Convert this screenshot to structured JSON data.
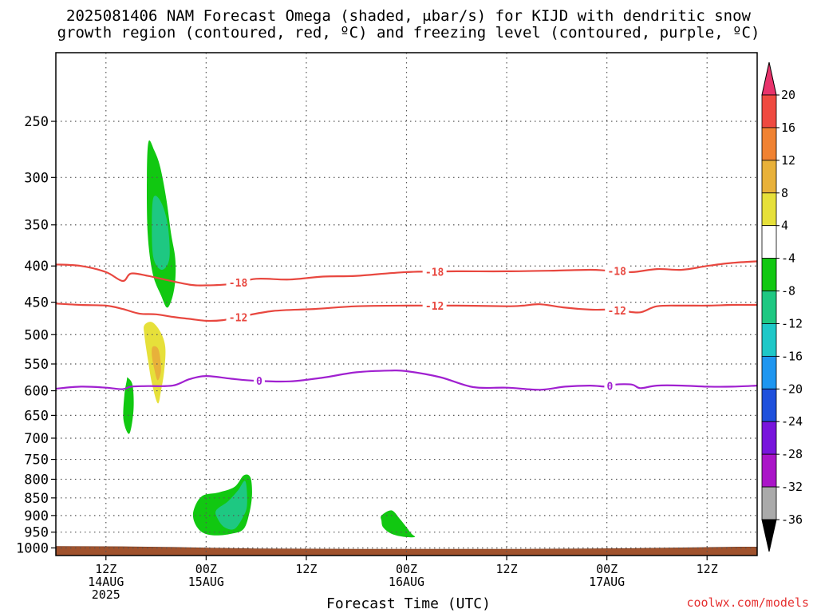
{
  "chart_data": {
    "type": "heatmap",
    "title_line1": "2025081406 NAM Forecast Omega (shaded, μbar/s) for KIJD with dendritic snow",
    "title_line2": "growth region (contoured, red, ºC) and freezing level (contoured, purple, ºC)",
    "xlabel": "Forecast Time (UTC)",
    "credit": "coolwx.com/models",
    "y_axis": {
      "log_scale": true,
      "inverted": true,
      "unit": "hPa",
      "range": [
        1025,
        200
      ],
      "ticks": [
        250,
        300,
        350,
        400,
        450,
        500,
        550,
        600,
        650,
        700,
        750,
        800,
        850,
        900,
        950,
        1000
      ]
    },
    "x_axis": {
      "range_hours": [
        -6,
        78
      ],
      "ticks": [
        {
          "hour": 0,
          "lines": [
            "12Z",
            "14AUG",
            "2025"
          ]
        },
        {
          "hour": 12,
          "lines": [
            "00Z",
            "15AUG"
          ]
        },
        {
          "hour": 24,
          "lines": [
            "12Z"
          ]
        },
        {
          "hour": 36,
          "lines": [
            "00Z",
            "16AUG"
          ]
        },
        {
          "hour": 48,
          "lines": [
            "12Z"
          ]
        },
        {
          "hour": 60,
          "lines": [
            "00Z",
            "17AUG"
          ]
        },
        {
          "hour": 72,
          "lines": [
            "12Z"
          ]
        }
      ]
    },
    "grid": true,
    "colorbar": {
      "position": "right",
      "levels": [
        -36,
        -32,
        -28,
        -24,
        -20,
        -16,
        -12,
        -8,
        -4,
        4,
        8,
        12,
        16,
        20
      ],
      "labels": [
        "20",
        "16",
        "12",
        "8",
        "4",
        "-4",
        "-8",
        "-12",
        "-16",
        "-20",
        "-24",
        "-28",
        "-32",
        "-36"
      ],
      "colors_top_to_bottom": [
        "#e8336b",
        "#ef4a40",
        "#f08232",
        "#e8b13a",
        "#e6e03a",
        "#ffffff",
        "#11c811",
        "#1ec882",
        "#1ec8c8",
        "#1e96f0",
        "#1e50dc",
        "#7814dc",
        "#aa14c8",
        "#aaaaaa",
        "#000000"
      ]
    },
    "contours": [
      {
        "color": "#e8473f",
        "labels": [
          "-18",
          "-18",
          "-18"
        ],
        "points": [
          [
            -6,
            398
          ],
          [
            -3,
            400
          ],
          [
            0,
            408
          ],
          [
            2,
            420
          ],
          [
            3,
            410
          ],
          [
            5,
            413
          ],
          [
            7,
            418
          ],
          [
            10,
            425
          ],
          [
            12,
            426
          ],
          [
            15,
            424
          ],
          [
            18,
            417
          ],
          [
            22,
            418
          ],
          [
            26,
            414
          ],
          [
            30,
            413
          ],
          [
            36,
            408
          ],
          [
            42,
            407
          ],
          [
            48,
            407
          ],
          [
            54,
            406
          ],
          [
            58,
            405
          ],
          [
            60,
            406
          ],
          [
            63,
            408
          ],
          [
            66,
            404
          ],
          [
            69,
            405
          ],
          [
            72,
            400
          ],
          [
            75,
            396
          ],
          [
            78,
            394
          ]
        ]
      },
      {
        "color": "#e8473f",
        "labels": [
          "-12",
          "-12",
          "-12"
        ],
        "points": [
          [
            -6,
            452
          ],
          [
            -3,
            454
          ],
          [
            0,
            455
          ],
          [
            2,
            460
          ],
          [
            4,
            467
          ],
          [
            6,
            468
          ],
          [
            8,
            472
          ],
          [
            10,
            475
          ],
          [
            12,
            478
          ],
          [
            14,
            477
          ],
          [
            16,
            472
          ],
          [
            20,
            463
          ],
          [
            25,
            460
          ],
          [
            30,
            456
          ],
          [
            36,
            455
          ],
          [
            42,
            455
          ],
          [
            48,
            456
          ],
          [
            50,
            455
          ],
          [
            52,
            453
          ],
          [
            55,
            458
          ],
          [
            58,
            461
          ],
          [
            60,
            461
          ],
          [
            62,
            463
          ],
          [
            64,
            465
          ],
          [
            66,
            456
          ],
          [
            69,
            455
          ],
          [
            72,
            455
          ],
          [
            75,
            454
          ],
          [
            78,
            454
          ]
        ]
      },
      {
        "color": "#a020d0",
        "labels": [
          "0",
          "0"
        ],
        "points": [
          [
            -6,
            596
          ],
          [
            -3,
            592
          ],
          [
            0,
            594
          ],
          [
            2,
            597
          ],
          [
            3,
            592
          ],
          [
            5,
            591
          ],
          [
            8,
            590
          ],
          [
            10,
            578
          ],
          [
            12,
            572
          ],
          [
            15,
            577
          ],
          [
            18,
            581
          ],
          [
            22,
            582
          ],
          [
            26,
            575
          ],
          [
            30,
            565
          ],
          [
            34,
            562
          ],
          [
            36,
            563
          ],
          [
            40,
            574
          ],
          [
            44,
            593
          ],
          [
            48,
            594
          ],
          [
            52,
            598
          ],
          [
            55,
            592
          ],
          [
            58,
            590
          ],
          [
            60,
            592
          ],
          [
            61,
            588
          ],
          [
            63,
            588
          ],
          [
            64,
            595
          ],
          [
            66,
            590
          ],
          [
            69,
            590
          ],
          [
            72,
            592
          ],
          [
            75,
            592
          ],
          [
            78,
            590
          ]
        ]
      }
    ],
    "shaded_regions": [
      {
        "omega": -6,
        "color": "#11c811",
        "hours": [
          5.1,
          5.8,
          6.5,
          7.2,
          7.8,
          8.3,
          8.3,
          7.9,
          7.3,
          6.6,
          5.6,
          5.0,
          4.9
        ],
        "pressures": [
          267,
          275,
          290,
          320,
          360,
          390,
          420,
          445,
          458,
          440,
          410,
          360,
          300
        ]
      },
      {
        "omega": -10,
        "color": "#1ec882",
        "hours": [
          5.7,
          6.6,
          7.4,
          7.6,
          6.7,
          5.7,
          5.5
        ],
        "pressures": [
          320,
          325,
          350,
          390,
          405,
          390,
          350
        ]
      },
      {
        "omega": 6,
        "color": "#e6e03a",
        "hours": [
          4.6,
          5.5,
          6.5,
          7.1,
          7.0,
          6.6,
          6.2,
          5.5,
          5.0,
          4.6
        ],
        "pressures": [
          485,
          480,
          495,
          520,
          560,
          600,
          625,
          585,
          540,
          500
        ]
      },
      {
        "omega": 10,
        "color": "#e8b13a",
        "hours": [
          5.6,
          6.3,
          6.6,
          6.2,
          5.8,
          5.5
        ],
        "pressures": [
          520,
          525,
          560,
          580,
          560,
          535
        ]
      },
      {
        "omega": -6,
        "color": "#11c811",
        "hours": [
          2.6,
          3.2,
          3.3,
          2.8,
          2.1,
          2.2,
          2.5
        ],
        "pressures": [
          575,
          590,
          640,
          690,
          660,
          610,
          580
        ]
      },
      {
        "omega": -6,
        "color": "#11c811",
        "hours": [
          10.5,
          11.5,
          13.5,
          15.4,
          16.5,
          17.3,
          17.5,
          17.2,
          16.5,
          15.0,
          13.0,
          11.5,
          10.6
        ],
        "pressures": [
          885,
          845,
          835,
          820,
          790,
          795,
          840,
          890,
          940,
          955,
          960,
          950,
          920
        ]
      },
      {
        "omega": -10,
        "color": "#1ec882",
        "hours": [
          13.2,
          14.6,
          15.8,
          16.7,
          16.9,
          16.4,
          15.4,
          14.2,
          13.4
        ],
        "pressures": [
          885,
          860,
          830,
          805,
          870,
          905,
          940,
          935,
          910
        ]
      },
      {
        "omega": -6,
        "color": "#11c811",
        "hours": [
          33.0,
          34.2,
          35.2,
          36.0,
          36.6,
          37.0,
          35.8,
          34.2,
          33.2,
          33.0
        ],
        "pressures": [
          900,
          885,
          910,
          935,
          955,
          965,
          965,
          955,
          935,
          915
        ]
      }
    ],
    "terrain": {
      "color": "#a0522d",
      "pressures": [
        [
          -6,
          995
        ],
        [
          2,
          996
        ],
        [
          8,
          998
        ],
        [
          18,
          1003
        ],
        [
          30,
          1004
        ],
        [
          50,
          1004
        ],
        [
          62,
          1002
        ],
        [
          76,
          997
        ],
        [
          78,
          997
        ]
      ]
    }
  }
}
